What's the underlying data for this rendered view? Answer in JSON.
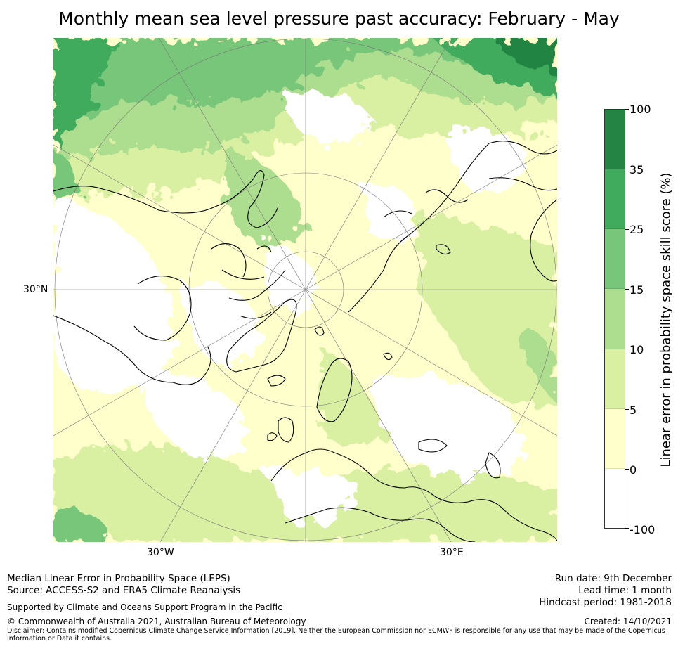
{
  "title": "Monthly mean sea level pressure past accuracy: February - May",
  "map": {
    "projection": "north polar stereographic",
    "lat_label": "30°N",
    "lon_labels": {
      "west": "30°W",
      "east": "30°E"
    }
  },
  "colorbar": {
    "label": "Linear error in probability space skill score (%)",
    "ticks": [
      "100",
      "35",
      "25",
      "15",
      "10",
      "5",
      "0",
      "-100"
    ],
    "bands": [
      {
        "range": "35 to 100",
        "color": "#238443"
      },
      {
        "range": "25 to 35",
        "color": "#41ab5d"
      },
      {
        "range": "15 to 25",
        "color": "#78c679"
      },
      {
        "range": "10 to 15",
        "color": "#addd8e"
      },
      {
        "range": "5 to 10",
        "color": "#d9f0a3"
      },
      {
        "range": "0 to 5",
        "color": "#ffffcc"
      },
      {
        "range": "-100 to 0",
        "color": "#ffffff"
      }
    ]
  },
  "footer": {
    "left_line1": "Median Linear Error in Probability Space (LEPS)",
    "left_line2": "Source: ACCESS-S2 and ERA5 Climate Reanalysis",
    "support": "Supported by Climate and Oceans Support Program in the Pacific",
    "copyright": "© Commonwealth of Australia 2021, Australian Bureau of Meteorology",
    "disclaimer": "Disclaimer: Contains modified Copernicus Climate Change Service Information [2019]. Neither the European Commission nor ECMWF is responsible for any use that may be made of the Copernicus Information or Data it contains.",
    "run_date": "Run date: 9th December",
    "lead_time": "Lead time: 1 month",
    "hindcast": "Hindcast period: 1981-2018",
    "created": "Created: 14/10/2021"
  }
}
